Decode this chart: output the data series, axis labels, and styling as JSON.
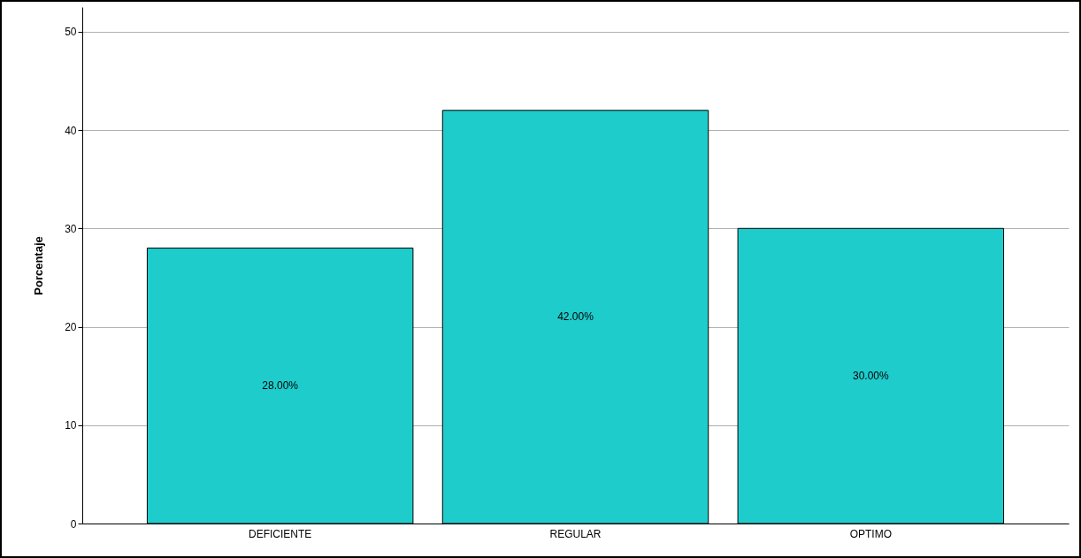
{
  "chart_data": {
    "type": "bar",
    "ylabel": "Porcentaje",
    "categories": [
      "DEFICIENTE",
      "REGULAR",
      "OPTIMO"
    ],
    "values": [
      28,
      42,
      30
    ],
    "value_labels": [
      "28.00%",
      "42.00%",
      "30.00%"
    ],
    "color": "#1ecccc",
    "ylim": [
      0,
      52.5
    ],
    "yticks": [
      0,
      10,
      20,
      30,
      40,
      50
    ],
    "grid": "y"
  }
}
